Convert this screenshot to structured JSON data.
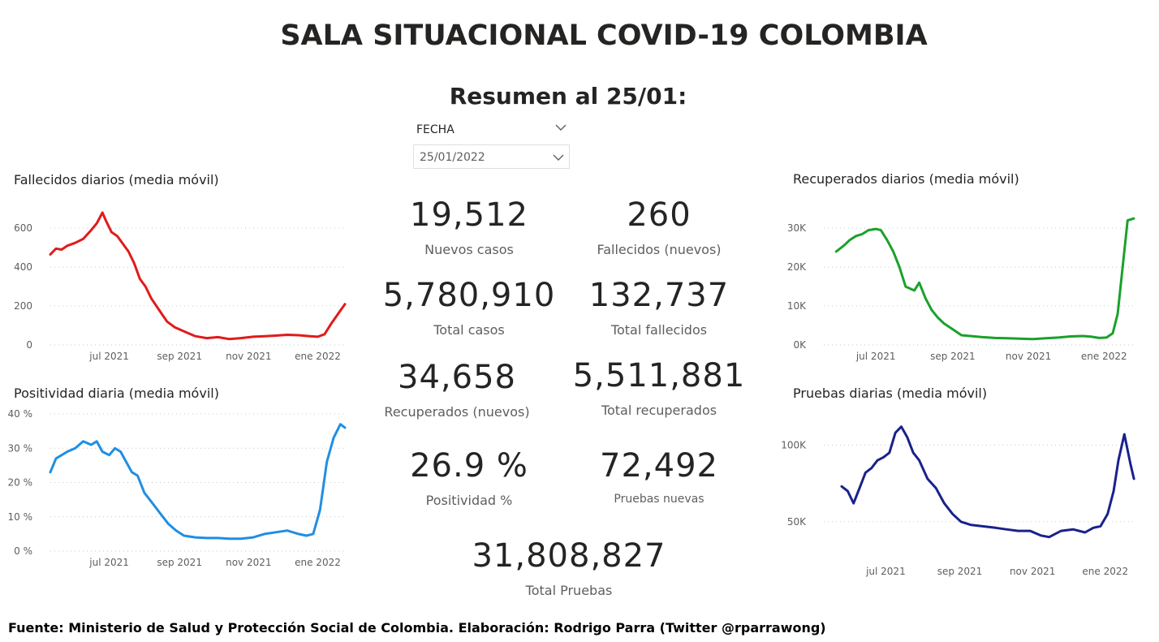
{
  "title": "SALA SITUACIONAL COVID-19 COLOMBIA",
  "subtitle": "Resumen al 25/01:",
  "slicer": {
    "label": "FECHA",
    "value": "25/01/2022"
  },
  "kpis": {
    "nuevos_casos": {
      "value": "19,512",
      "label": "Nuevos casos"
    },
    "fallecidos_nuevos": {
      "value": "260",
      "label": "Fallecidos (nuevos)"
    },
    "total_casos": {
      "value": "5,780,910",
      "label": "Total casos"
    },
    "total_fallecidos": {
      "value": "132,737",
      "label": "Total fallecidos"
    },
    "recuperados_nuevos": {
      "value": "34,658",
      "label": "Recuperados (nuevos)"
    },
    "total_recuperados": {
      "value": "5,511,881",
      "label": "Total recuperados"
    },
    "positividad": {
      "value": "26.9 %",
      "label": "Positividad %"
    },
    "pruebas_nuevas": {
      "value": "72,492",
      "label": "Pruebas nuevas"
    },
    "total_pruebas": {
      "value": "31,808,827",
      "label": "Total Pruebas"
    }
  },
  "footer": "Fuente: Ministerio de Salud y Protección Social de Colombia. Elaboración: Rodrigo Parra (Twitter @rparrawong)",
  "chart_data": [
    {
      "id": "fallecidos",
      "type": "line",
      "title": "Fallecidos diarios (media móvil)",
      "color": "#e01b1b",
      "grid": true,
      "x_ticks": [
        "jul 2021",
        "sep 2021",
        "nov 2021",
        "ene 2022"
      ],
      "x_tick_dates": [
        "2021-07-01",
        "2021-09-01",
        "2021-11-01",
        "2022-01-01"
      ],
      "x_range": [
        "2021-05-10",
        "2022-01-25"
      ],
      "y_ticks": [
        "0",
        "200",
        "400",
        "600"
      ],
      "y_tick_values": [
        0,
        200,
        400,
        600
      ],
      "ylim": [
        0,
        680
      ],
      "x": [
        "2021-05-10",
        "2021-05-15",
        "2021-05-20",
        "2021-05-25",
        "2021-06-01",
        "2021-06-08",
        "2021-06-15",
        "2021-06-20",
        "2021-06-25",
        "2021-06-28",
        "2021-07-03",
        "2021-07-08",
        "2021-07-13",
        "2021-07-18",
        "2021-07-23",
        "2021-07-28",
        "2021-08-02",
        "2021-08-07",
        "2021-08-14",
        "2021-08-21",
        "2021-08-28",
        "2021-09-05",
        "2021-09-15",
        "2021-09-25",
        "2021-10-05",
        "2021-10-15",
        "2021-10-25",
        "2021-11-05",
        "2021-11-15",
        "2021-11-25",
        "2021-12-05",
        "2021-12-15",
        "2021-12-25",
        "2022-01-01",
        "2022-01-07",
        "2022-01-13",
        "2022-01-19",
        "2022-01-25"
      ],
      "values": [
        465,
        495,
        490,
        510,
        525,
        545,
        590,
        625,
        680,
        640,
        580,
        560,
        520,
        480,
        420,
        340,
        300,
        240,
        180,
        120,
        90,
        70,
        45,
        35,
        40,
        30,
        35,
        42,
        45,
        48,
        52,
        50,
        45,
        42,
        55,
        110,
        160,
        210
      ]
    },
    {
      "id": "positividad",
      "type": "line",
      "title": "Positividad diaria (media móvil)",
      "color": "#208ee2",
      "grid": true,
      "x_ticks": [
        "jul 2021",
        "sep 2021",
        "nov 2021",
        "ene 2022"
      ],
      "x_tick_dates": [
        "2021-07-01",
        "2021-09-01",
        "2021-11-01",
        "2022-01-01"
      ],
      "x_range": [
        "2021-05-10",
        "2022-01-25"
      ],
      "y_ticks": [
        "0 %",
        "10 %",
        "20 %",
        "30 %",
        "40 %"
      ],
      "y_tick_values": [
        0,
        10,
        20,
        30,
        40
      ],
      "ylim": [
        0,
        40
      ],
      "x": [
        "2021-05-10",
        "2021-05-15",
        "2021-05-20",
        "2021-05-25",
        "2021-06-01",
        "2021-06-08",
        "2021-06-15",
        "2021-06-20",
        "2021-06-25",
        "2021-07-01",
        "2021-07-06",
        "2021-07-11",
        "2021-07-16",
        "2021-07-21",
        "2021-07-26",
        "2021-08-01",
        "2021-08-08",
        "2021-08-15",
        "2021-08-22",
        "2021-08-29",
        "2021-09-05",
        "2021-09-15",
        "2021-09-25",
        "2021-10-05",
        "2021-10-15",
        "2021-10-25",
        "2021-11-05",
        "2021-11-15",
        "2021-11-25",
        "2021-12-05",
        "2021-12-15",
        "2021-12-22",
        "2021-12-28",
        "2022-01-03",
        "2022-01-09",
        "2022-01-15",
        "2022-01-21",
        "2022-01-25"
      ],
      "values": [
        23,
        27,
        28,
        29,
        30,
        32,
        31,
        32,
        29,
        28,
        30,
        29,
        26,
        23,
        22,
        17,
        14,
        11,
        8,
        6,
        4.5,
        4,
        3.8,
        3.8,
        3.6,
        3.6,
        4,
        5,
        5.5,
        6,
        5,
        4.5,
        5,
        12,
        26,
        33,
        37,
        36
      ]
    },
    {
      "id": "recuperados",
      "type": "line",
      "title": "Recuperados diarios (media móvil)",
      "color": "#1aa12b",
      "grid": true,
      "x_ticks": [
        "jul 2021",
        "sep 2021",
        "nov 2021",
        "ene 2022"
      ],
      "x_tick_dates": [
        "2021-07-01",
        "2021-09-01",
        "2021-11-01",
        "2022-01-01"
      ],
      "x_range": [
        "2021-05-20",
        "2022-01-27"
      ],
      "y_ticks": [
        "0K",
        "10K",
        "20K",
        "30K"
      ],
      "y_tick_values": [
        0,
        10000,
        20000,
        30000
      ],
      "ylim": [
        0,
        34000
      ],
      "x": [
        "2021-05-30",
        "2021-06-05",
        "2021-06-10",
        "2021-06-15",
        "2021-06-20",
        "2021-06-25",
        "2021-07-01",
        "2021-07-05",
        "2021-07-10",
        "2021-07-15",
        "2021-07-20",
        "2021-07-25",
        "2021-08-01",
        "2021-08-05",
        "2021-08-10",
        "2021-08-15",
        "2021-08-20",
        "2021-08-25",
        "2021-09-01",
        "2021-09-08",
        "2021-09-15",
        "2021-09-25",
        "2021-10-05",
        "2021-10-15",
        "2021-10-25",
        "2021-11-05",
        "2021-11-15",
        "2021-11-25",
        "2021-12-05",
        "2021-12-15",
        "2021-12-22",
        "2021-12-28",
        "2022-01-03",
        "2022-01-08",
        "2022-01-12",
        "2022-01-16",
        "2022-01-20",
        "2022-01-25"
      ],
      "values": [
        24000,
        25500,
        27000,
        28000,
        28500,
        29500,
        29800,
        29500,
        27000,
        24000,
        20000,
        15000,
        14000,
        16000,
        12000,
        9000,
        7000,
        5500,
        4000,
        2500,
        2300,
        2000,
        1800,
        1700,
        1600,
        1500,
        1700,
        1900,
        2200,
        2300,
        2100,
        1800,
        1900,
        3000,
        8000,
        20000,
        32000,
        32500
      ]
    },
    {
      "id": "pruebas",
      "type": "line",
      "title": "Pruebas diarias (media móvil)",
      "color": "#19228a",
      "grid": true,
      "x_ticks": [
        "jul 2021",
        "sep 2021",
        "nov 2021",
        "ene 2022"
      ],
      "x_tick_dates": [
        "2021-07-01",
        "2021-09-01",
        "2021-11-01",
        "2022-01-01"
      ],
      "x_range": [
        "2021-05-10",
        "2022-01-27"
      ],
      "y_ticks": [
        "50K",
        "100K"
      ],
      "y_tick_values": [
        50000,
        100000
      ],
      "ylim": [
        25000,
        115000
      ],
      "x": [
        "2021-05-25",
        "2021-05-30",
        "2021-06-04",
        "2021-06-09",
        "2021-06-14",
        "2021-06-19",
        "2021-06-24",
        "2021-06-29",
        "2021-07-04",
        "2021-07-09",
        "2021-07-14",
        "2021-07-19",
        "2021-07-24",
        "2021-07-29",
        "2021-08-05",
        "2021-08-12",
        "2021-08-19",
        "2021-08-26",
        "2021-09-02",
        "2021-09-10",
        "2021-09-20",
        "2021-10-01",
        "2021-10-10",
        "2021-10-20",
        "2021-10-30",
        "2021-11-08",
        "2021-11-15",
        "2021-11-25",
        "2021-12-05",
        "2021-12-15",
        "2021-12-22",
        "2021-12-28",
        "2022-01-03",
        "2022-01-08",
        "2022-01-12",
        "2022-01-17",
        "2022-01-22",
        "2022-01-25"
      ],
      "values": [
        73000,
        70000,
        62000,
        72000,
        82000,
        85000,
        90000,
        92000,
        95000,
        108000,
        112000,
        105000,
        95000,
        90000,
        78000,
        72000,
        62000,
        55000,
        50000,
        48000,
        47000,
        46000,
        45000,
        44000,
        44000,
        41000,
        40000,
        44000,
        45000,
        43000,
        46000,
        47000,
        55000,
        70000,
        90000,
        107000,
        88000,
        78000
      ]
    }
  ]
}
